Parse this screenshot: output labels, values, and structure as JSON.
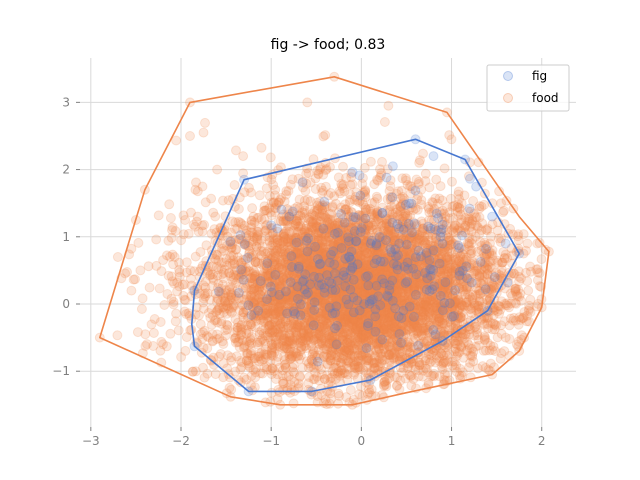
{
  "chart_data": {
    "type": "scatter",
    "title": "fig -> food; 0.83",
    "xlabel": "",
    "ylabel": "",
    "xlim": [
      -3.12,
      2.38
    ],
    "ylim": [
      -1.83,
      3.66
    ],
    "xticks": [
      -3,
      -2,
      -1,
      0,
      1,
      2
    ],
    "yticks": [
      -1,
      0,
      1,
      2,
      3
    ],
    "grid": true,
    "legend_position": "top-right",
    "colors": {
      "fig": "#4878d0",
      "food": "#ee854a",
      "grid": "#d9d9d9",
      "tick": "#7f7f7f"
    },
    "series": [
      {
        "name": "fig",
        "point_count": 250,
        "center": [
          0.05,
          0.55
        ],
        "spread": [
          0.6,
          0.55
        ],
        "hull": [
          [
            0.6,
            2.45
          ],
          [
            1.15,
            2.15
          ],
          [
            1.75,
            0.75
          ],
          [
            1.4,
            -0.1
          ],
          [
            0.9,
            -0.55
          ],
          [
            0.1,
            -1.13
          ],
          [
            -0.55,
            -1.3
          ],
          [
            -1.25,
            -1.3
          ],
          [
            -1.85,
            -0.63
          ],
          [
            -1.88,
            -0.3
          ],
          [
            -1.85,
            0.2
          ],
          [
            -1.3,
            1.85
          ]
        ]
      },
      {
        "name": "food",
        "point_count": 6000,
        "center": [
          -0.05,
          0.2
        ],
        "spread": [
          0.85,
          0.7
        ],
        "hull": [
          [
            -0.3,
            3.38
          ],
          [
            0.95,
            2.85
          ],
          [
            1.75,
            1.3
          ],
          [
            2.08,
            0.78
          ],
          [
            2.0,
            -0.05
          ],
          [
            1.75,
            -0.7
          ],
          [
            1.45,
            -1.05
          ],
          [
            0.5,
            -1.32
          ],
          [
            -0.1,
            -1.5
          ],
          [
            -0.9,
            -1.5
          ],
          [
            -1.45,
            -1.38
          ],
          [
            -2.9,
            -0.5
          ],
          [
            -2.4,
            1.7
          ],
          [
            -1.9,
            3.0
          ]
        ]
      }
    ],
    "highlight_points": {
      "fig": [
        [
          0.6,
          2.45
        ],
        [
          0.8,
          2.2
        ],
        [
          1.15,
          2.15
        ],
        [
          0.35,
          2.05
        ],
        [
          1.2,
          1.42
        ],
        [
          1.45,
          1.3
        ],
        [
          1.6,
          0.9
        ],
        [
          1.75,
          0.75
        ],
        [
          1.48,
          0.4
        ],
        [
          1.62,
          0.32
        ],
        [
          -1.3,
          1.85
        ],
        [
          -1.85,
          0.2
        ],
        [
          -1.85,
          -0.63
        ],
        [
          -1.25,
          -1.3
        ],
        [
          -0.55,
          -1.3
        ],
        [
          0.1,
          -1.13
        ],
        [
          0.9,
          -0.55
        ],
        [
          1.4,
          -0.1
        ]
      ],
      "food": [
        [
          -0.3,
          3.38
        ],
        [
          -1.9,
          3.0
        ],
        [
          0.95,
          2.85
        ],
        [
          -2.4,
          1.7
        ],
        [
          -2.9,
          -0.5
        ],
        [
          2.08,
          0.78
        ],
        [
          2.0,
          -0.05
        ],
        [
          1.75,
          -0.7
        ],
        [
          1.45,
          -1.05
        ],
        [
          -0.9,
          -1.5
        ],
        [
          -0.1,
          -1.5
        ],
        [
          -1.45,
          -1.38
        ],
        [
          -1.75,
          2.55
        ],
        [
          -2.5,
          1.25
        ],
        [
          -2.7,
          0.7
        ],
        [
          -2.45,
          0.5
        ],
        [
          -2.55,
          0.2
        ],
        [
          -2.1,
          1.1
        ],
        [
          -1.6,
          2.0
        ],
        [
          -0.6,
          3.0
        ],
        [
          0.3,
          2.95
        ],
        [
          1.0,
          2.45
        ],
        [
          1.55,
          1.5
        ],
        [
          1.95,
          0.9
        ],
        [
          1.85,
          0.2
        ],
        [
          1.6,
          -0.5
        ],
        [
          -2.2,
          -0.6
        ],
        [
          -1.9,
          2.5
        ]
      ]
    }
  }
}
